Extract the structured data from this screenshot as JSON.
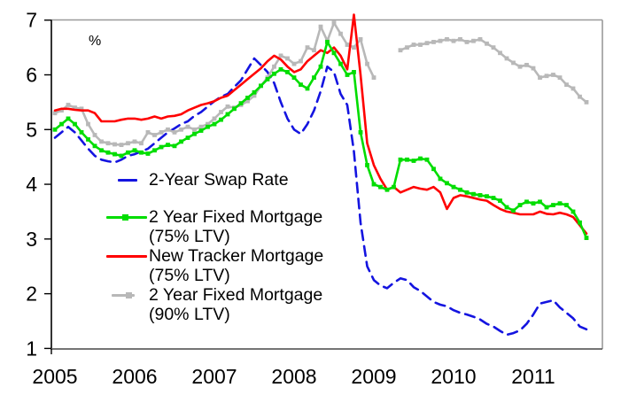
{
  "chart": {
    "percent_label": "%"
  },
  "chart_data": {
    "type": "line",
    "title": "",
    "ylabel": "%",
    "ylim": [
      1,
      7
    ],
    "y_ticks": [
      1,
      2,
      3,
      4,
      5,
      6,
      7
    ],
    "x_tick_labels": [
      "2005",
      "2006",
      "2007",
      "2008",
      "2009",
      "2010",
      "2011"
    ],
    "x_unit": "month",
    "x_start": "2005-01",
    "x_end": "2011-09",
    "grid": false,
    "legend_position": "inside-left",
    "frame_color": "#9a9a9a",
    "axis_color": "#000000",
    "legend": [
      {
        "line1": "2-Year Swap Rate",
        "line2": ""
      },
      {
        "line1": "2 Year Fixed Mortgage",
        "line2": "(75% LTV)"
      },
      {
        "line1": "New Tracker Mortgage",
        "line2": "(75% LTV)"
      },
      {
        "line1": "2 Year Fixed Mortgage",
        "line2": "(90% LTV)"
      }
    ],
    "series": [
      {
        "name": "2-Year Swap Rate",
        "color": "#1414e0",
        "style": "dashed",
        "marker": false,
        "values": [
          4.85,
          4.95,
          5.05,
          4.95,
          4.8,
          4.65,
          4.52,
          4.45,
          4.42,
          4.4,
          4.45,
          4.52,
          4.55,
          4.6,
          4.65,
          4.75,
          4.85,
          4.95,
          5.02,
          5.1,
          5.15,
          5.25,
          5.32,
          5.42,
          5.52,
          5.6,
          5.65,
          5.78,
          5.9,
          6.1,
          6.3,
          6.18,
          6.05,
          5.85,
          5.5,
          5.2,
          5.0,
          4.92,
          5.1,
          5.35,
          5.7,
          6.15,
          6.05,
          5.65,
          5.45,
          4.6,
          3.3,
          2.5,
          2.25,
          2.15,
          2.1,
          2.2,
          2.28,
          2.25,
          2.12,
          2.05,
          1.95,
          1.85,
          1.8,
          1.77,
          1.7,
          1.65,
          1.62,
          1.58,
          1.53,
          1.45,
          1.4,
          1.32,
          1.25,
          1.28,
          1.33,
          1.45,
          1.62,
          1.82,
          1.85,
          1.88,
          1.75,
          1.65,
          1.55,
          1.4,
          1.35
        ]
      },
      {
        "name": "2 Year Fixed Mortgage (90% LTV)",
        "color": "#b8b8b8",
        "style": "solid",
        "marker": true,
        "values": [
          5.3,
          5.35,
          5.45,
          5.4,
          5.38,
          5.1,
          4.9,
          4.78,
          4.75,
          4.73,
          4.72,
          4.75,
          4.78,
          4.75,
          4.95,
          4.9,
          4.95,
          5.0,
          4.95,
          5.0,
          5.05,
          5.0,
          5.05,
          5.1,
          5.2,
          5.32,
          5.42,
          5.4,
          5.45,
          5.52,
          5.62,
          5.8,
          5.95,
          6.15,
          6.35,
          6.3,
          6.2,
          6.25,
          6.5,
          6.45,
          6.88,
          6.62,
          6.95,
          6.75,
          6.55,
          6.5,
          6.65,
          6.2,
          5.95,
          null,
          null,
          null,
          6.45,
          6.5,
          6.55,
          6.55,
          6.58,
          6.6,
          6.62,
          6.65,
          6.62,
          6.65,
          6.6,
          6.62,
          6.65,
          6.57,
          6.5,
          6.4,
          6.3,
          6.22,
          6.15,
          6.18,
          6.12,
          5.95,
          5.98,
          6.0,
          5.95,
          5.82,
          5.75,
          5.6,
          5.5
        ]
      },
      {
        "name": "New Tracker Mortgage (75% LTV)",
        "color": "#ff0000",
        "style": "solid",
        "marker": false,
        "values": [
          5.35,
          5.38,
          5.38,
          5.36,
          5.35,
          5.35,
          5.3,
          5.15,
          5.15,
          5.15,
          5.18,
          5.2,
          5.2,
          5.18,
          5.2,
          5.24,
          5.2,
          5.24,
          5.25,
          5.28,
          5.35,
          5.4,
          5.45,
          5.48,
          5.52,
          5.58,
          5.62,
          5.72,
          5.82,
          5.92,
          6.02,
          6.12,
          6.25,
          6.35,
          6.28,
          6.15,
          6.05,
          6.1,
          6.25,
          6.35,
          6.45,
          6.4,
          6.5,
          6.35,
          6.1,
          7.1,
          6.0,
          4.75,
          4.35,
          4.1,
          3.9,
          3.95,
          3.85,
          3.9,
          3.95,
          3.92,
          3.9,
          3.95,
          3.85,
          3.55,
          3.75,
          3.8,
          3.78,
          3.75,
          3.72,
          3.7,
          3.62,
          3.55,
          3.5,
          3.48,
          3.45,
          3.45,
          3.45,
          3.5,
          3.46,
          3.45,
          3.48,
          3.45,
          3.4,
          3.25,
          3.1
        ]
      },
      {
        "name": "2 Year Fixed Mortgage (75% LTV)",
        "color": "#00dd00",
        "style": "solid",
        "marker": true,
        "values": [
          5.0,
          5.1,
          5.2,
          5.1,
          4.95,
          4.82,
          4.7,
          4.62,
          4.58,
          4.55,
          4.52,
          4.58,
          4.62,
          4.58,
          4.56,
          4.62,
          4.68,
          4.72,
          4.7,
          4.78,
          4.85,
          4.92,
          4.98,
          5.05,
          5.1,
          5.18,
          5.28,
          5.38,
          5.48,
          5.58,
          5.68,
          5.8,
          5.92,
          6.02,
          6.1,
          6.05,
          5.95,
          5.82,
          5.75,
          5.95,
          6.15,
          6.6,
          6.4,
          6.2,
          6.0,
          6.05,
          4.95,
          4.35,
          4.0,
          3.95,
          3.9,
          3.95,
          4.45,
          4.45,
          4.43,
          4.47,
          4.45,
          4.28,
          4.1,
          4.02,
          3.95,
          3.9,
          3.85,
          3.82,
          3.8,
          3.78,
          3.75,
          3.7,
          3.58,
          3.52,
          3.62,
          3.68,
          3.65,
          3.68,
          3.58,
          3.62,
          3.65,
          3.62,
          3.5,
          3.3,
          3.02
        ]
      }
    ]
  }
}
